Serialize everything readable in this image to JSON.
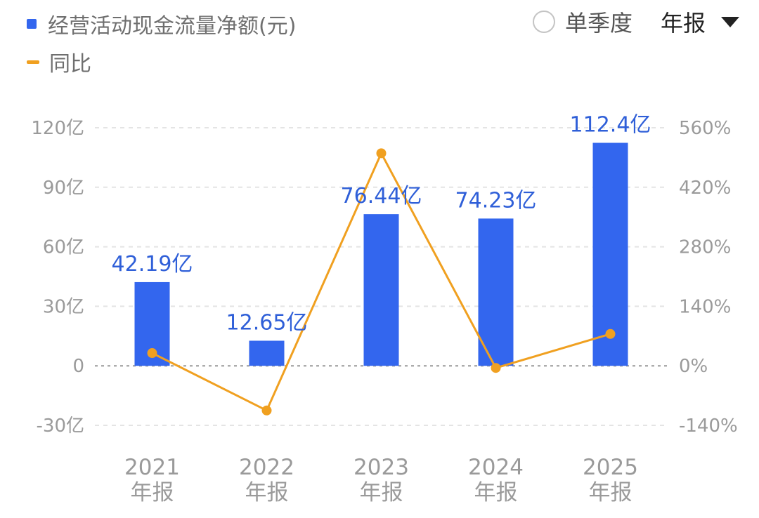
{
  "legend": {
    "bar_label": "经营活动现金流量净额(元)",
    "line_label": "同比"
  },
  "controls": {
    "radio_label": "单季度",
    "period_label": "年报"
  },
  "colors": {
    "bar": "#3366ee",
    "line": "#f0a020",
    "data_label": "#2f5fd8"
  },
  "chart_data": {
    "type": "bar",
    "categories": [
      [
        "2021",
        "年报"
      ],
      [
        "2022",
        "年报"
      ],
      [
        "2023",
        "年报"
      ],
      [
        "2024",
        "年报"
      ],
      [
        "2025",
        "年报"
      ]
    ],
    "series": [
      {
        "name": "经营活动现金流量净额(元)",
        "type": "bar",
        "axis": "left",
        "values": [
          42.19,
          12.65,
          76.44,
          74.23,
          112.4
        ],
        "labels": [
          "42.19亿",
          "12.65亿",
          "76.44亿",
          "74.23亿",
          "112.4亿"
        ]
      },
      {
        "name": "同比",
        "type": "line",
        "axis": "right",
        "values": [
          30,
          -105,
          500,
          -5,
          75
        ]
      }
    ],
    "y_left": {
      "ticks": [
        120,
        90,
        60,
        30,
        0,
        -30
      ],
      "tick_labels": [
        "120亿",
        "90亿",
        "60亿",
        "30亿",
        "0",
        "-30亿"
      ],
      "range": [
        -30,
        120
      ]
    },
    "y_right": {
      "ticks": [
        560,
        420,
        280,
        140,
        0,
        -140
      ],
      "tick_labels": [
        "560%",
        "420%",
        "280%",
        "140%",
        "0%",
        "-140%"
      ],
      "range": [
        -140,
        560
      ]
    },
    "grid": "dashed"
  }
}
